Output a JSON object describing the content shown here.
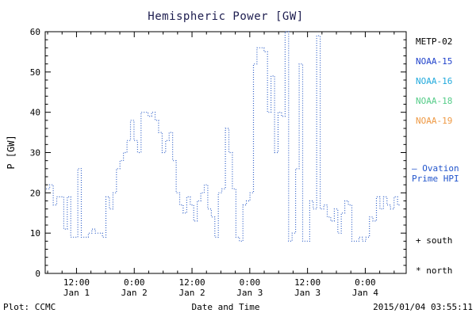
{
  "title": "Hemispheric Power [GW]",
  "y_axis_label": "P [GW]",
  "x_axis_label": "Date and Time",
  "footer": {
    "left": "Plot: CCMC",
    "right": "2015/01/04 03:55:11"
  },
  "legend": {
    "satellites": [
      {
        "label": "METP-02",
        "color": "#000000"
      },
      {
        "label": "NOAA-15",
        "color": "#2244cc"
      },
      {
        "label": "NOAA-16",
        "color": "#22aadd"
      },
      {
        "label": "NOAA-18",
        "color": "#55cc88"
      },
      {
        "label": "NOAA-19",
        "color": "#ee9944"
      }
    ],
    "model_line1": "— Ovation",
    "model_line2": "Prime HPI",
    "model_color": "#2255cc",
    "south_marker": "+ south",
    "north_marker": "* north"
  },
  "chart_data": {
    "type": "line",
    "style": "dotted-step",
    "title": "Hemispheric Power [GW]",
    "xlabel": "Date and Time",
    "ylabel": "P [GW]",
    "line_color": "#3060c8",
    "axis_color": "#000000",
    "grid": false,
    "ylim": [
      0,
      60
    ],
    "y_ticks": [
      0,
      10,
      20,
      30,
      40,
      50,
      60
    ],
    "y_minor_step": 2,
    "x_range_hours": [
      5.5,
      80.5
    ],
    "x_minor_step_hours": 3,
    "x_ticks": [
      {
        "hour": 12,
        "time": "12:00",
        "date": "Jan 1"
      },
      {
        "hour": 24,
        "time": "0:00",
        "date": "Jan 2"
      },
      {
        "hour": 36,
        "time": "12:00",
        "date": "Jan 2"
      },
      {
        "hour": 48,
        "time": "0:00",
        "date": "Jan 3"
      },
      {
        "hour": 60,
        "time": "12:00",
        "date": "Jan 3"
      },
      {
        "hour": 72,
        "time": "0:00",
        "date": "Jan 4"
      }
    ],
    "t_start_hours": 5.7,
    "t_step_hours": 0.73,
    "values_gw": [
      21,
      22,
      17,
      19,
      19,
      11,
      19,
      9,
      9,
      26,
      9,
      9,
      10,
      11,
      10,
      10,
      9,
      19,
      16,
      20,
      26,
      28,
      30,
      33,
      38,
      33,
      30,
      40,
      40,
      39,
      40,
      38,
      35,
      30,
      33,
      35,
      28,
      20,
      17,
      15,
      19,
      17,
      13,
      18,
      20,
      22,
      16,
      14,
      9,
      20,
      21,
      36,
      30,
      21,
      9,
      8,
      17,
      18,
      20,
      52,
      56,
      56,
      55,
      40,
      49,
      30,
      40,
      39,
      60,
      8,
      10,
      26,
      52,
      8,
      8,
      18,
      16,
      59,
      16,
      17,
      14,
      13,
      16,
      10,
      15,
      18,
      17,
      8,
      8,
      9,
      8,
      9,
      14,
      13,
      19,
      16,
      19,
      17,
      16,
      19,
      17
    ]
  }
}
